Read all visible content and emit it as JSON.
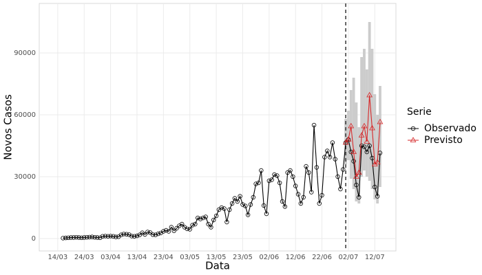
{
  "chart_data": {
    "type": "line",
    "x_label": "Data",
    "y_label": "Novos Casos",
    "legend_title": "Serie",
    "legend": "right",
    "grid": true,
    "xlim": [
      "07/03",
      "20/07"
    ],
    "xticks": [
      "14/03",
      "24/03",
      "03/04",
      "13/04",
      "23/04",
      "03/05",
      "13/05",
      "23/05",
      "02/06",
      "12/06",
      "22/06",
      "02/07",
      "12/07"
    ],
    "ylim": [
      -6000,
      114000
    ],
    "yticks": [
      0,
      30000,
      60000,
      90000
    ],
    "vline": "01/07",
    "series": [
      {
        "name": "Observado",
        "color": "#000000",
        "marker": "circle",
        "x": [
          "16/03",
          "17/03",
          "18/03",
          "19/03",
          "20/03",
          "21/03",
          "22/03",
          "23/03",
          "24/03",
          "25/03",
          "26/03",
          "27/03",
          "28/03",
          "29/03",
          "30/03",
          "31/03",
          "01/04",
          "02/04",
          "03/04",
          "04/04",
          "05/04",
          "06/04",
          "07/04",
          "08/04",
          "09/04",
          "10/04",
          "11/04",
          "12/04",
          "13/04",
          "14/04",
          "15/04",
          "16/04",
          "17/04",
          "18/04",
          "19/04",
          "20/04",
          "21/04",
          "22/04",
          "23/04",
          "24/04",
          "25/04",
          "26/04",
          "27/04",
          "28/04",
          "29/04",
          "30/04",
          "01/05",
          "02/05",
          "03/05",
          "04/05",
          "05/05",
          "06/05",
          "07/05",
          "08/05",
          "09/05",
          "10/05",
          "11/05",
          "12/05",
          "13/05",
          "14/05",
          "15/05",
          "16/05",
          "17/05",
          "18/05",
          "19/05",
          "20/05",
          "21/05",
          "22/05",
          "23/05",
          "24/05",
          "25/05",
          "26/05",
          "27/05",
          "28/05",
          "29/05",
          "30/05",
          "31/05",
          "01/06",
          "02/06",
          "03/06",
          "04/06",
          "05/06",
          "06/06",
          "07/06",
          "08/06",
          "09/06",
          "10/06",
          "11/06",
          "12/06",
          "13/06",
          "14/06",
          "15/06",
          "16/06",
          "17/06",
          "18/06",
          "19/06",
          "20/06",
          "21/06",
          "22/06",
          "23/06",
          "24/06",
          "25/06",
          "26/06",
          "27/06",
          "28/06",
          "29/06",
          "30/06",
          "01/07",
          "02/07",
          "03/07",
          "04/07",
          "05/07",
          "06/07",
          "07/07",
          "08/07",
          "09/07",
          "10/07",
          "11/07",
          "12/07",
          "13/07",
          "14/07"
        ],
        "values": [
          200,
          300,
          400,
          500,
          500,
          600,
          500,
          400,
          500,
          600,
          700,
          800,
          600,
          500,
          400,
          1100,
          1200,
          1100,
          1200,
          1100,
          800,
          900,
          1800,
          2200,
          2100,
          1900,
          1200,
          1100,
          1300,
          1800,
          2800,
          2000,
          3200,
          2900,
          1900,
          1800,
          2300,
          2700,
          3500,
          4000,
          3500,
          5500,
          3800,
          5000,
          6200,
          7000,
          5500,
          4700,
          4500,
          6500,
          7000,
          10000,
          9500,
          10000,
          10500,
          7000,
          5500,
          9000,
          11000,
          14000,
          15000,
          14500,
          8000,
          14000,
          17000,
          19500,
          18000,
          20500,
          16500,
          15800,
          11500,
          16500,
          20000,
          26500,
          27000,
          33000,
          16000,
          12000,
          28000,
          28500,
          31000,
          30500,
          27000,
          18000,
          15500,
          32000,
          33000,
          30000,
          25500,
          21500,
          17000,
          20000,
          35000,
          32000,
          22500,
          55000,
          34500,
          17000,
          21000,
          39500,
          42500,
          39500,
          46500,
          38500,
          30000,
          24000,
          33500,
          46500,
          48000,
          42000,
          37500,
          26000,
          20000,
          45000,
          44500,
          42000,
          45000,
          39000,
          25000,
          20500,
          41500
        ]
      },
      {
        "name": "Previsto",
        "color": "#d62728",
        "marker": "triangle",
        "x": [
          "01/07",
          "02/07",
          "03/07",
          "04/07",
          "05/07",
          "06/07",
          "07/07",
          "08/07",
          "09/07",
          "10/07",
          "11/07",
          "12/07",
          "13/07",
          "14/07"
        ],
        "values": [
          46500,
          48000,
          54500,
          42000,
          30000,
          32000,
          50000,
          54500,
          47000,
          69500,
          53500,
          36000,
          37000,
          56500
        ]
      }
    ],
    "band": {
      "color": "#cccccc",
      "lower": [
        36000,
        38000,
        29000,
        24000,
        18000,
        17000,
        30000,
        33000,
        30000,
        28000,
        24000,
        19000,
        17000,
        25000
      ],
      "upper": [
        58000,
        62000,
        72000,
        78000,
        66000,
        54000,
        88000,
        92000,
        82000,
        105000,
        92000,
        70000,
        60000,
        74000
      ]
    }
  }
}
